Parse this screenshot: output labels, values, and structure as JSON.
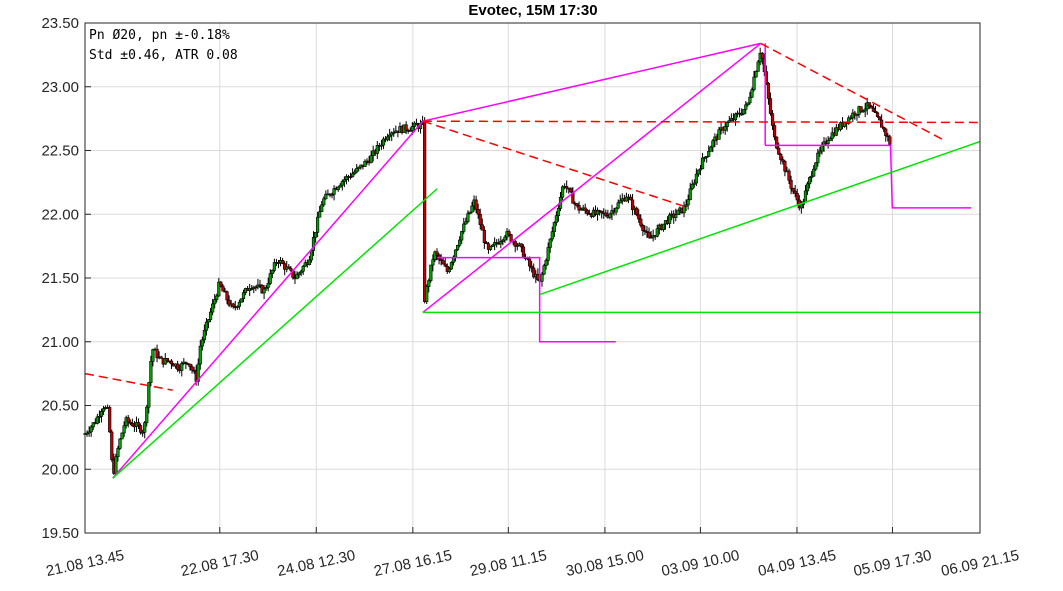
{
  "chart_data": {
    "type": "candlestick",
    "title": "Evotec, 15M 17:30",
    "info_lines": [
      "Pn  Ø20, pn ±-0.18%",
      "Std ±0.46, ATR 0.08"
    ],
    "xlabel": "",
    "ylabel": "",
    "grid": true,
    "x_range": [
      0,
      1
    ],
    "ylim": [
      19.5,
      23.5
    ],
    "yticks": [
      19.5,
      20.0,
      20.5,
      21.0,
      21.5,
      22.0,
      22.5,
      23.0,
      23.5
    ],
    "ytick_labels": [
      "19.50",
      "20.00",
      "20.50",
      "21.00",
      "21.50",
      "22.00",
      "22.50",
      "23.00",
      "23.50"
    ],
    "xticks": [
      {
        "label": "21.08 13.45",
        "x": 0.0
      },
      {
        "label": "22.08 17.30",
        "x": 0.1506
      },
      {
        "label": "24.08 12.30",
        "x": 0.2584
      },
      {
        "label": "27.08 16.15",
        "x": 0.3663
      },
      {
        "label": "29.08 11.15",
        "x": 0.473
      },
      {
        "label": "30.08 15.00",
        "x": 0.5809
      },
      {
        "label": "03.09 10.00",
        "x": 0.6876
      },
      {
        "label": "04.09 13.45",
        "x": 0.7955
      },
      {
        "label": "05.09 17.30",
        "x": 0.9022
      },
      {
        "label": "06.09 21.15",
        "x": 1.0
      }
    ],
    "price_path": [
      [
        0.0,
        20.28
      ],
      [
        0.012,
        20.38
      ],
      [
        0.02,
        20.5
      ],
      [
        0.026,
        20.45
      ],
      [
        0.031,
        19.95
      ],
      [
        0.038,
        20.2
      ],
      [
        0.045,
        20.38
      ],
      [
        0.055,
        20.35
      ],
      [
        0.066,
        20.3
      ],
      [
        0.075,
        20.95
      ],
      [
        0.085,
        20.85
      ],
      [
        0.095,
        20.85
      ],
      [
        0.105,
        20.8
      ],
      [
        0.115,
        20.85
      ],
      [
        0.125,
        20.7
      ],
      [
        0.128,
        20.95
      ],
      [
        0.15,
        21.45
      ],
      [
        0.165,
        21.25
      ],
      [
        0.185,
        21.45
      ],
      [
        0.2,
        21.4
      ],
      [
        0.215,
        21.65
      ],
      [
        0.235,
        21.5
      ],
      [
        0.25,
        21.65
      ],
      [
        0.265,
        22.1
      ],
      [
        0.285,
        22.25
      ],
      [
        0.305,
        22.35
      ],
      [
        0.32,
        22.45
      ],
      [
        0.33,
        22.55
      ],
      [
        0.34,
        22.65
      ],
      [
        0.3775,
        22.7
      ],
      [
        0.3785,
        21.3
      ],
      [
        0.39,
        21.7
      ],
      [
        0.405,
        21.55
      ],
      [
        0.42,
        21.85
      ],
      [
        0.435,
        22.1
      ],
      [
        0.45,
        21.7
      ],
      [
        0.47,
        21.85
      ],
      [
        0.485,
        21.75
      ],
      [
        0.5,
        21.55
      ],
      [
        0.508,
        21.45
      ],
      [
        0.52,
        21.8
      ],
      [
        0.535,
        22.25
      ],
      [
        0.55,
        22.05
      ],
      [
        0.57,
        22.0
      ],
      [
        0.585,
        22.0
      ],
      [
        0.605,
        22.15
      ],
      [
        0.62,
        21.95
      ],
      [
        0.63,
        21.8
      ],
      [
        0.65,
        21.95
      ],
      [
        0.67,
        22.05
      ],
      [
        0.685,
        22.35
      ],
      [
        0.7,
        22.55
      ],
      [
        0.715,
        22.7
      ],
      [
        0.725,
        22.75
      ],
      [
        0.74,
        22.85
      ],
      [
        0.755,
        23.3
      ],
      [
        0.77,
        22.6
      ],
      [
        0.79,
        22.2
      ],
      [
        0.8,
        22.05
      ],
      [
        0.815,
        22.4
      ],
      [
        0.83,
        22.6
      ],
      [
        0.845,
        22.7
      ],
      [
        0.86,
        22.8
      ],
      [
        0.875,
        22.85
      ],
      [
        0.89,
        22.7
      ],
      [
        0.9,
        22.55
      ]
    ],
    "lines": [
      {
        "color": "#ff00ff",
        "dash": false,
        "points": [
          [
            0.031,
            19.93
          ],
          [
            0.3775,
            22.73
          ],
          [
            0.755,
            23.34
          ]
        ]
      },
      {
        "color": "#ff00ff",
        "dash": false,
        "points": [
          [
            0.3775,
            21.23
          ],
          [
            0.755,
            23.34
          ]
        ]
      },
      {
        "color": "#ff00ff",
        "dash": false,
        "points": [
          [
            0.393,
            21.66
          ],
          [
            0.508,
            21.66
          ],
          [
            0.508,
            21.0
          ],
          [
            0.593,
            21.0
          ]
        ]
      },
      {
        "color": "#ff00ff",
        "dash": false,
        "points": [
          [
            0.76,
            22.54
          ],
          [
            0.9,
            22.54
          ],
          [
            0.902,
            22.05
          ],
          [
            0.99,
            22.05
          ]
        ]
      },
      {
        "color": "#ff00ff",
        "dash": false,
        "points": [
          [
            0.76,
            23.34
          ],
          [
            0.76,
            22.54
          ]
        ]
      },
      {
        "color": "#00e600",
        "dash": false,
        "points": [
          [
            0.031,
            19.93
          ],
          [
            0.3935,
            22.2
          ]
        ]
      },
      {
        "color": "#00e600",
        "dash": false,
        "points": [
          [
            0.508,
            21.37
          ],
          [
            1.0,
            22.57
          ]
        ]
      },
      {
        "color": "#00e600",
        "dash": false,
        "points": [
          [
            0.3775,
            21.23
          ],
          [
            1.0,
            21.23
          ]
        ]
      },
      {
        "color": "#ff0000",
        "dash": true,
        "points": [
          [
            0.0,
            20.75
          ],
          [
            0.098,
            20.62
          ]
        ]
      },
      {
        "color": "#ff0000",
        "dash": true,
        "points": [
          [
            0.3775,
            22.73
          ],
          [
            1.0,
            22.72
          ]
        ]
      },
      {
        "color": "#ff0000",
        "dash": true,
        "points": [
          [
            0.3775,
            22.73
          ],
          [
            0.675,
            22.05
          ]
        ]
      },
      {
        "color": "#ff0000",
        "dash": true,
        "points": [
          [
            0.755,
            23.34
          ],
          [
            0.96,
            22.58
          ]
        ]
      }
    ],
    "candle_colors": {
      "up": "#00a000",
      "down": "#c00000",
      "wick": "#000000"
    }
  }
}
